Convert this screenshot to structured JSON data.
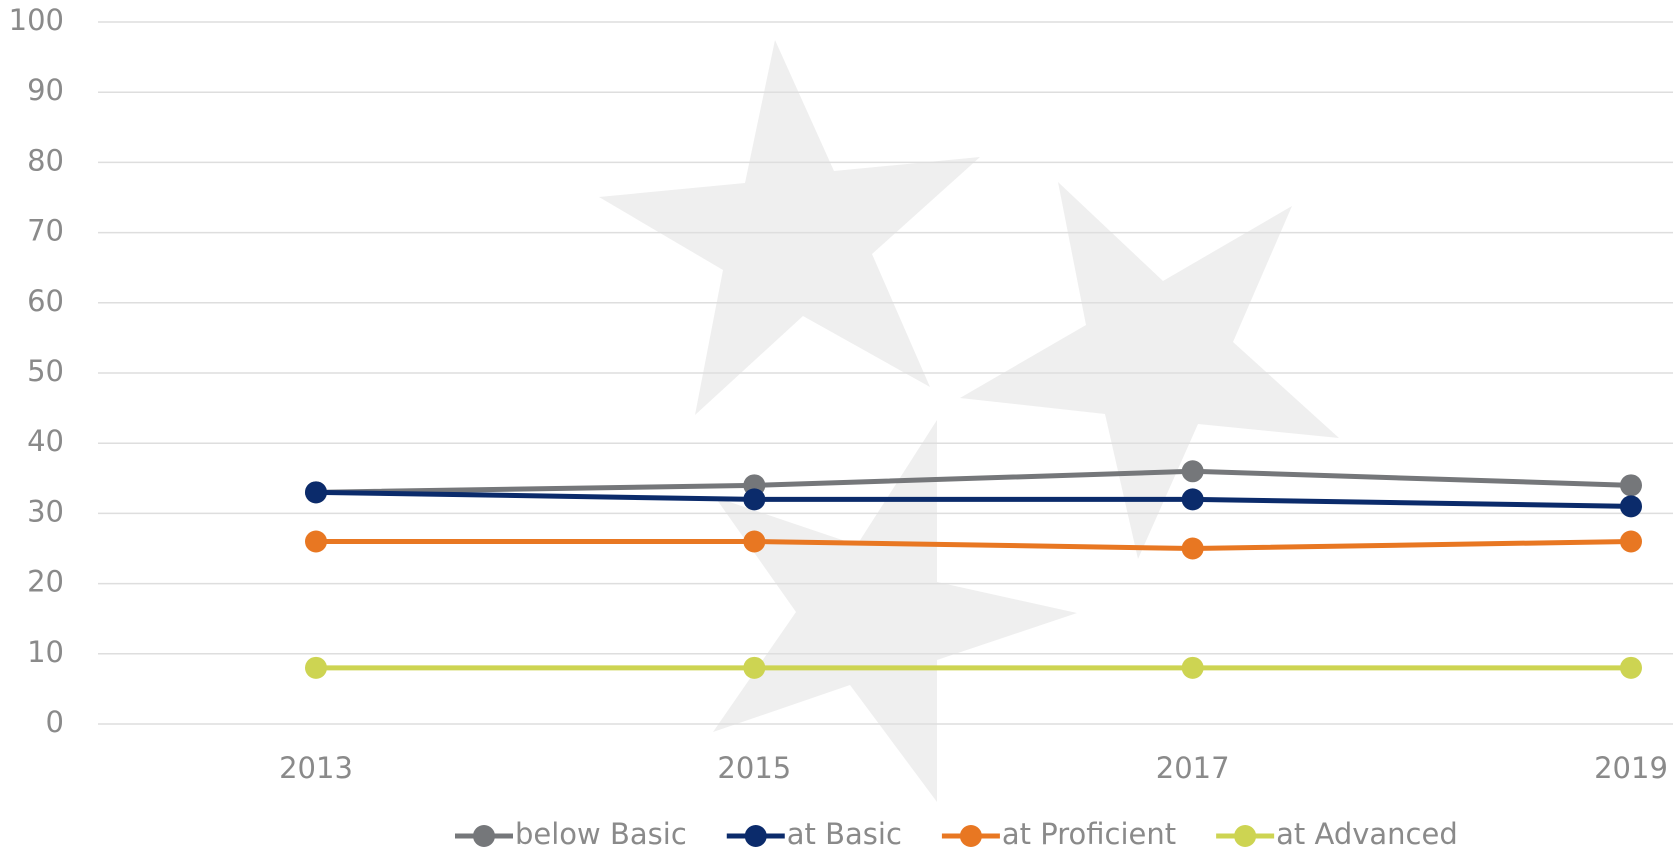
{
  "chart_data": {
    "type": "line",
    "categories": [
      "2013",
      "2015",
      "2017",
      "2019"
    ],
    "series": [
      {
        "name": "below Basic",
        "color": "#75777a",
        "values": [
          33,
          34,
          36,
          34
        ]
      },
      {
        "name": "at Basic",
        "color": "#0b2b6b",
        "values": [
          33,
          32,
          32,
          31
        ]
      },
      {
        "name": "at Proficient",
        "color": "#e87722",
        "values": [
          26,
          26,
          25,
          26
        ]
      },
      {
        "name": "at Advanced",
        "color": "#cdd452",
        "values": [
          8,
          8,
          8,
          8
        ]
      }
    ],
    "ylim": [
      0,
      100
    ],
    "yticks": [
      0,
      10,
      20,
      30,
      40,
      50,
      60,
      70,
      80,
      90,
      100
    ],
    "grid": true,
    "legend": "bottom"
  }
}
